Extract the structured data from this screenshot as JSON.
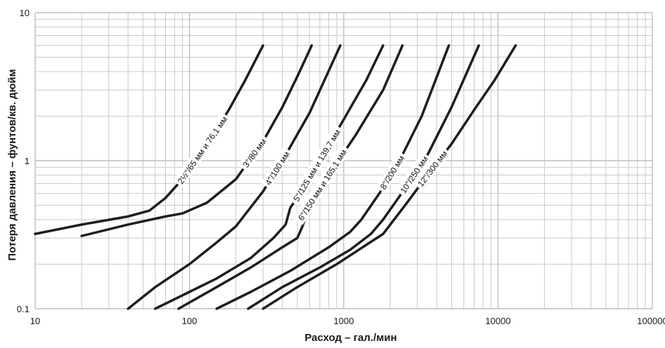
{
  "chart_data": {
    "type": "line",
    "title": "",
    "xlabel": "Расход – гал./мин",
    "ylabel": "Потеря давления – фунтов/кв. дюйм",
    "xscale": "log",
    "yscale": "log",
    "xlim": [
      10,
      100000
    ],
    "ylim": [
      0.1,
      10
    ],
    "grid": true,
    "legend": "none",
    "x_ticks": [
      "10",
      "100",
      "1000",
      "10000",
      "100000"
    ],
    "y_ticks": [
      "0.1",
      "1",
      "10"
    ],
    "series": [
      {
        "name": "2½\"/65 мм и 76,1 мм",
        "x": [
          10,
          20,
          40,
          55,
          70,
          90,
          130,
          180,
          230,
          300
        ],
        "y": [
          0.32,
          0.37,
          0.42,
          0.46,
          0.56,
          0.75,
          1.3,
          2.2,
          3.5,
          6.0
        ]
      },
      {
        "name": "3\"/80 мм",
        "x": [
          20,
          40,
          70,
          90,
          130,
          200,
          300,
          400,
          500,
          620
        ],
        "y": [
          0.31,
          0.37,
          0.42,
          0.44,
          0.52,
          0.75,
          1.35,
          2.3,
          3.7,
          6.0
        ]
      },
      {
        "name": "4\"/100 мм",
        "x": [
          40,
          60,
          100,
          150,
          200,
          300,
          400,
          600,
          950
        ],
        "y": [
          0.1,
          0.14,
          0.2,
          0.28,
          0.36,
          0.62,
          1.0,
          2.1,
          6.0
        ]
      },
      {
        "name": "5\"/125 мм и 139,7 мм",
        "x": [
          60,
          100,
          150,
          250,
          350,
          420,
          450,
          520,
          700,
          1000,
          1400,
          1800
        ],
        "y": [
          0.1,
          0.13,
          0.16,
          0.22,
          0.3,
          0.37,
          0.48,
          0.6,
          1.0,
          1.9,
          3.5,
          6.0
        ]
      },
      {
        "name": "6\"/150 мм и 165,1 мм",
        "x": [
          85,
          150,
          250,
          400,
          500,
          540,
          600,
          800,
          1200,
          1800,
          2400
        ],
        "y": [
          0.1,
          0.14,
          0.19,
          0.26,
          0.3,
          0.36,
          0.5,
          0.8,
          1.5,
          3.0,
          6.0
        ]
      },
      {
        "name": "8\"/200 мм",
        "x": [
          150,
          250,
          450,
          800,
          1100,
          1300,
          1700,
          2300,
          3200,
          4800
        ],
        "y": [
          0.1,
          0.13,
          0.18,
          0.26,
          0.33,
          0.4,
          0.6,
          1.0,
          2.0,
          6.0
        ]
      },
      {
        "name": "10\"/250 мм",
        "x": [
          240,
          400,
          700,
          1100,
          1500,
          1800,
          2500,
          3500,
          5000,
          7500
        ],
        "y": [
          0.1,
          0.14,
          0.19,
          0.25,
          0.32,
          0.4,
          0.65,
          1.1,
          2.3,
          6.0
        ]
      },
      {
        "name": "12\"/300 мм",
        "x": [
          300,
          500,
          900,
          1400,
          1800,
          2500,
          3500,
          5000,
          7000,
          9500,
          13000
        ],
        "y": [
          0.1,
          0.14,
          0.2,
          0.27,
          0.32,
          0.5,
          0.8,
          1.3,
          2.2,
          3.5,
          6.0
        ]
      }
    ]
  }
}
